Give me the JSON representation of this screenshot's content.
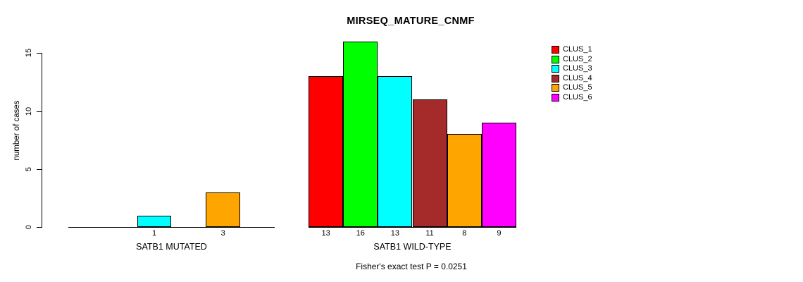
{
  "chart_data": {
    "type": "bar",
    "title": "MIRSEQ_MATURE_CNMF",
    "ylabel": "number of cases",
    "ylim": [
      0,
      16
    ],
    "yticks": [
      0,
      5,
      10,
      15
    ],
    "grid": false,
    "legend_position": "right",
    "axis_color": "#000000",
    "background_color": "#ffffff",
    "categories": [
      "SATB1 MUTATED",
      "SATB1 WILD-TYPE"
    ],
    "series": [
      {
        "name": "CLUS_1",
        "color": "#FF0000",
        "values": [
          0,
          13
        ]
      },
      {
        "name": "CLUS_2",
        "color": "#00FF00",
        "values": [
          0,
          16
        ]
      },
      {
        "name": "CLUS_3",
        "color": "#00FFFF",
        "values": [
          1,
          13
        ]
      },
      {
        "name": "CLUS_4",
        "color": "#A52A2A",
        "values": [
          0,
          11
        ]
      },
      {
        "name": "CLUS_5",
        "color": "#FFA500",
        "values": [
          3,
          8
        ]
      },
      {
        "name": "CLUS_6",
        "color": "#FF00FF",
        "values": [
          0,
          9
        ]
      }
    ],
    "bar_value_labels": [
      [
        "",
        "",
        "1",
        "",
        "3",
        ""
      ],
      [
        "13",
        "16",
        "13",
        "11",
        "8",
        "9"
      ]
    ],
    "annotation": "Fisher's exact test P = 0.0251"
  }
}
